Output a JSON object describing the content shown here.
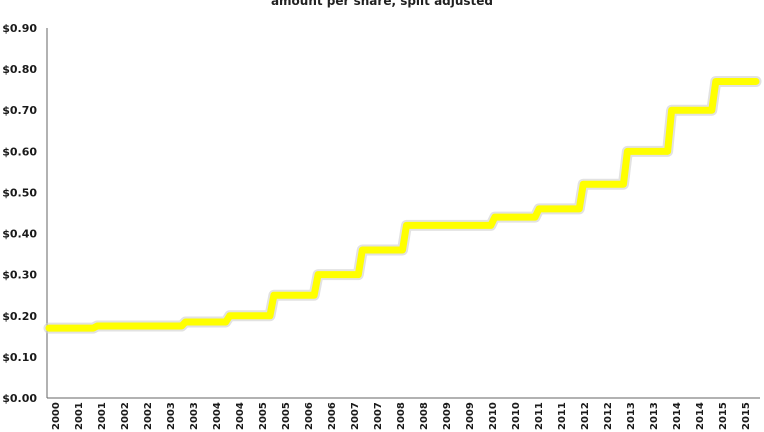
{
  "chart_data": {
    "type": "line",
    "step": true,
    "title": "amount per share, split adjusted",
    "xlabel": "",
    "ylabel": "",
    "ylim": [
      0,
      0.9
    ],
    "y_ticks": [
      "$0.00",
      "$0.10",
      "$0.20",
      "$0.30",
      "$0.40",
      "$0.50",
      "$0.60",
      "$0.70",
      "$0.80",
      "$0.90"
    ],
    "x_ticks": [
      "2000",
      "2001",
      "2001",
      "2002",
      "2002",
      "2003",
      "2003",
      "2004",
      "2004",
      "2005",
      "2005",
      "2006",
      "2006",
      "2007",
      "2007",
      "2008",
      "2008",
      "2009",
      "2009",
      "2010",
      "2010",
      "2011",
      "2011",
      "2012",
      "2012",
      "2013",
      "2013",
      "2014",
      "2014",
      "2015",
      "2015"
    ],
    "series": [
      {
        "color": "#ffff00",
        "values": [
          0.17,
          0.17,
          0.175,
          0.175,
          0.175,
          0.175,
          0.185,
          0.185,
          0.2,
          0.2,
          0.25,
          0.25,
          0.3,
          0.3,
          0.36,
          0.36,
          0.42,
          0.42,
          0.42,
          0.42,
          0.44,
          0.44,
          0.46,
          0.46,
          0.52,
          0.52,
          0.6,
          0.6,
          0.7,
          0.7,
          0.77,
          0.77
        ]
      }
    ],
    "grid": false,
    "legend": "none"
  }
}
